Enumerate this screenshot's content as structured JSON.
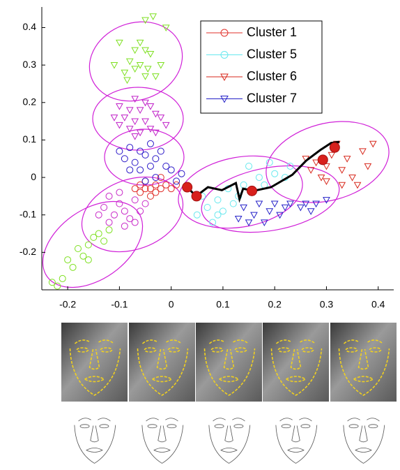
{
  "chart_data": {
    "type": "scatter",
    "xlim": [
      -0.25,
      0.43
    ],
    "ylim": [
      -0.3,
      0.455
    ],
    "xticks": [
      -0.2,
      -0.1,
      0,
      0.1,
      0.2,
      0.3,
      0.4
    ],
    "yticks": [
      -0.2,
      -0.1,
      0,
      0.1,
      0.2,
      0.3,
      0.4
    ],
    "series": [
      {
        "name": "Cluster 1",
        "color": "#e0302a",
        "marker": "o",
        "x": [
          -0.06,
          -0.04,
          -0.05,
          -0.03,
          -0.02,
          -0.01,
          -0.07,
          -0.04,
          -0.02,
          0.0,
          -0.06,
          -0.03,
          -0.05,
          0.01
        ],
        "y": [
          -0.02,
          -0.03,
          -0.01,
          -0.02,
          -0.03,
          -0.02,
          -0.03,
          -0.05,
          0.0,
          -0.03,
          -0.04,
          -0.04,
          -0.03,
          -0.02
        ]
      },
      {
        "name": "Cluster 5",
        "color": "#66e8ee",
        "marker": "o",
        "x": [
          0.05,
          0.07,
          0.08,
          0.09,
          0.1,
          0.11,
          0.12,
          0.13,
          0.14,
          0.15,
          0.17,
          0.18,
          0.2,
          0.19,
          0.22,
          0.23,
          0.06,
          0.09
        ],
        "y": [
          -0.1,
          -0.08,
          -0.12,
          -0.06,
          -0.09,
          -0.03,
          -0.07,
          -0.05,
          -0.02,
          0.03,
          0.0,
          -0.02,
          0.01,
          0.04,
          0.0,
          0.03,
          -0.05,
          -0.1
        ]
      },
      {
        "name": "Cluster 6",
        "color": "#d8281c",
        "marker": "v",
        "x": [
          0.26,
          0.27,
          0.28,
          0.29,
          0.3,
          0.31,
          0.3,
          0.33,
          0.34,
          0.35,
          0.36,
          0.37,
          0.38,
          0.39,
          0.32,
          0.33
        ],
        "y": [
          0.05,
          0.02,
          0.04,
          0.0,
          0.03,
          0.06,
          -0.01,
          0.02,
          0.05,
          0.0,
          -0.02,
          0.07,
          0.03,
          0.09,
          0.09,
          -0.02
        ]
      },
      {
        "name": "Cluster 7",
        "color": "#2420c8",
        "marker": "v",
        "x": [
          0.14,
          0.16,
          0.17,
          0.18,
          0.19,
          0.2,
          0.21,
          0.22,
          0.23,
          0.25,
          0.26,
          0.27,
          0.28,
          0.3,
          0.13,
          0.15
        ],
        "y": [
          -0.08,
          -0.1,
          -0.07,
          -0.12,
          -0.09,
          -0.07,
          -0.1,
          -0.08,
          -0.07,
          -0.08,
          -0.07,
          -0.09,
          -0.07,
          -0.06,
          -0.11,
          -0.12
        ]
      },
      {
        "color": "#7ee020",
        "marker": "v",
        "x": [
          -0.05,
          -0.035,
          -0.01,
          -0.1,
          -0.06,
          -0.07,
          -0.05,
          -0.04,
          -0.08,
          -0.11,
          -0.06,
          -0.045,
          -0.09,
          -0.05,
          -0.03,
          -0.085,
          -0.07,
          -0.02
        ],
        "y": [
          0.42,
          0.43,
          0.4,
          0.36,
          0.36,
          0.34,
          0.34,
          0.33,
          0.31,
          0.3,
          0.3,
          0.29,
          0.28,
          0.27,
          0.27,
          0.26,
          0.29,
          0.3
        ]
      },
      {
        "color": "#c020c8",
        "marker": "v",
        "x": [
          -0.07,
          -0.05,
          -0.1,
          -0.08,
          -0.06,
          -0.04,
          -0.03,
          -0.09,
          -0.07,
          -0.05,
          -0.02,
          -0.1,
          -0.08,
          -0.06,
          -0.04,
          -0.07,
          -0.03,
          -0.11,
          -0.01
        ],
        "y": [
          0.21,
          0.2,
          0.19,
          0.18,
          0.18,
          0.19,
          0.17,
          0.16,
          0.15,
          0.15,
          0.16,
          0.14,
          0.13,
          0.12,
          0.13,
          0.11,
          0.12,
          0.16,
          0.14
        ]
      },
      {
        "color": "#2a18c8",
        "marker": "o",
        "x": [
          -0.08,
          -0.06,
          -0.04,
          -0.05,
          -0.09,
          -0.07,
          -0.03,
          -0.02,
          -0.06,
          -0.04,
          -0.01,
          0.0,
          -0.08,
          -0.03,
          0.02,
          -0.05,
          0.01,
          -0.1
        ],
        "y": [
          0.08,
          0.07,
          0.09,
          0.06,
          0.05,
          0.04,
          0.05,
          0.07,
          0.02,
          0.03,
          0.03,
          0.02,
          0.02,
          0.0,
          0.01,
          -0.01,
          -0.01,
          0.07
        ]
      },
      {
        "color": "#c828c8",
        "marker": "o",
        "x": [
          -0.12,
          -0.1,
          -0.09,
          -0.11,
          -0.08,
          -0.07,
          -0.13,
          -0.06,
          -0.1,
          -0.12,
          -0.09,
          -0.14,
          -0.05,
          -0.07
        ],
        "y": [
          -0.05,
          -0.07,
          -0.09,
          -0.1,
          -0.11,
          -0.06,
          -0.08,
          -0.09,
          -0.04,
          -0.12,
          -0.13,
          -0.1,
          -0.07,
          -0.12
        ]
      },
      {
        "color": "#7ee020",
        "marker": "o",
        "x": [
          -0.23,
          -0.21,
          -0.19,
          -0.2,
          -0.17,
          -0.18,
          -0.16,
          -0.15,
          -0.14,
          -0.13,
          -0.12,
          -0.22,
          -0.16
        ],
        "y": [
          -0.28,
          -0.27,
          -0.24,
          -0.22,
          -0.21,
          -0.19,
          -0.18,
          -0.16,
          -0.15,
          -0.17,
          -0.14,
          -0.29,
          -0.22
        ]
      }
    ],
    "trajectory": {
      "color": "#000000",
      "x": [
        0.031,
        0.048,
        0.071,
        0.098,
        0.125,
        0.132,
        0.139,
        0.159,
        0.193,
        0.234,
        0.261,
        0.288,
        0.309,
        0.325
      ],
      "y": [
        -0.026,
        -0.05,
        -0.026,
        -0.034,
        -0.015,
        -0.058,
        -0.03,
        -0.036,
        -0.026,
        0.007,
        0.045,
        0.073,
        0.092,
        0.095
      ]
    },
    "waypoints": {
      "color": "#d8201c",
      "x": [
        0.031,
        0.049,
        0.156,
        0.293,
        0.316
      ],
      "y": [
        -0.026,
        -0.05,
        -0.036,
        0.047,
        0.08
      ]
    }
  }
}
